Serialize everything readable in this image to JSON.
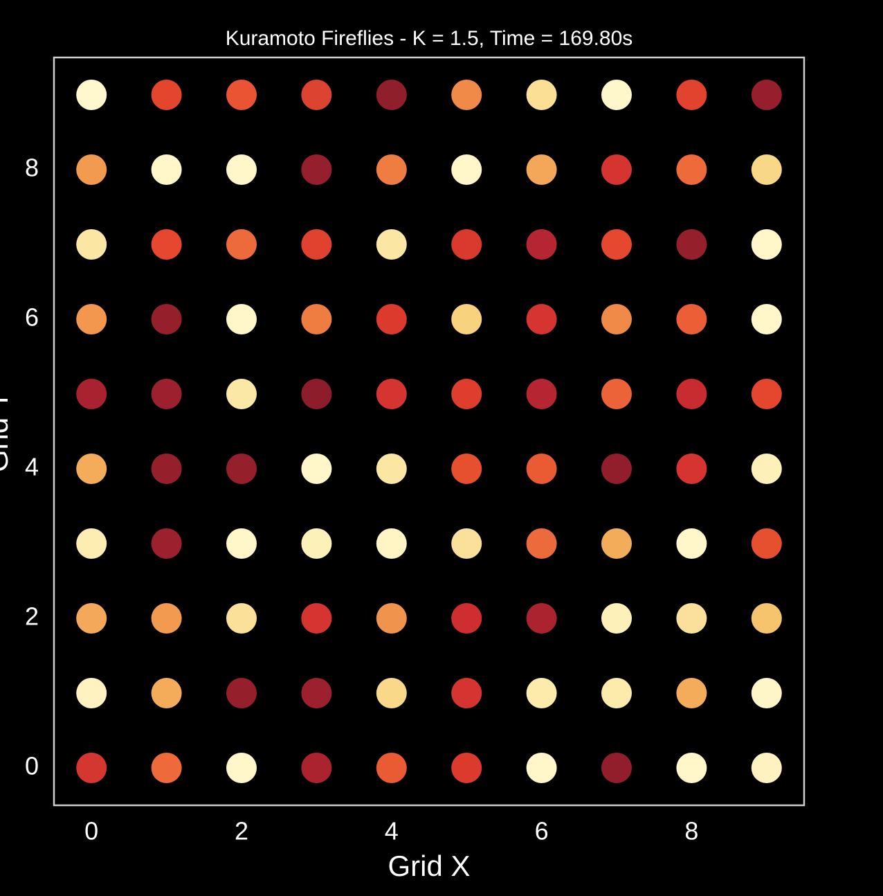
{
  "chart_data": {
    "type": "scatter",
    "title": "Kuramoto Fireflies - K = 1.5, Time = 169.80s",
    "xlabel": "Grid X",
    "ylabel": "Grid Y",
    "xlim": [
      -0.5,
      9.5
    ],
    "ylim": [
      -0.5,
      9.5
    ],
    "xticks": [
      0,
      2,
      4,
      6,
      8
    ],
    "yticks": [
      0,
      2,
      4,
      6,
      8
    ],
    "grid": false,
    "x": [
      0,
      1,
      2,
      3,
      4,
      5,
      6,
      7,
      8,
      9,
      0,
      1,
      2,
      3,
      4,
      5,
      6,
      7,
      8,
      9,
      0,
      1,
      2,
      3,
      4,
      5,
      6,
      7,
      8,
      9,
      0,
      1,
      2,
      3,
      4,
      5,
      6,
      7,
      8,
      9,
      0,
      1,
      2,
      3,
      4,
      5,
      6,
      7,
      8,
      9,
      0,
      1,
      2,
      3,
      4,
      5,
      6,
      7,
      8,
      9,
      0,
      1,
      2,
      3,
      4,
      5,
      6,
      7,
      8,
      9,
      0,
      1,
      2,
      3,
      4,
      5,
      6,
      7,
      8,
      9,
      0,
      1,
      2,
      3,
      4,
      5,
      6,
      7,
      8,
      9,
      0,
      1,
      2,
      3,
      4,
      5,
      6,
      7,
      8,
      9
    ],
    "y": [
      9,
      9,
      9,
      9,
      9,
      9,
      9,
      9,
      9,
      9,
      8,
      8,
      8,
      8,
      8,
      8,
      8,
      8,
      8,
      8,
      7,
      7,
      7,
      7,
      7,
      7,
      7,
      7,
      7,
      7,
      6,
      6,
      6,
      6,
      6,
      6,
      6,
      6,
      6,
      6,
      5,
      5,
      5,
      5,
      5,
      5,
      5,
      5,
      5,
      5,
      4,
      4,
      4,
      4,
      4,
      4,
      4,
      4,
      4,
      4,
      3,
      3,
      3,
      3,
      3,
      3,
      3,
      3,
      3,
      3,
      2,
      2,
      2,
      2,
      2,
      2,
      2,
      2,
      2,
      2,
      1,
      1,
      1,
      1,
      1,
      1,
      1,
      1,
      1,
      1,
      0,
      0,
      0,
      0,
      0,
      0,
      0,
      0,
      0,
      0
    ],
    "colors": [
      "#fff8cf",
      "#e4452d",
      "#ea5433",
      "#dc4330",
      "#8f1f2b",
      "#ef8a48",
      "#fbdf94",
      "#fef7cc",
      "#e2432e",
      "#971e2c",
      "#f29a50",
      "#fff6c9",
      "#fff6c9",
      "#951f2c",
      "#ef7c41",
      "#fff6c9",
      "#f4a659",
      "#d63430",
      "#ee6a3b",
      "#f8d887",
      "#fbe6a4",
      "#e6472e",
      "#ed6b3b",
      "#e0422f",
      "#fbe6a4",
      "#d93a2d",
      "#b52532",
      "#e6482f",
      "#961f2c",
      "#fff6c9",
      "#f3974f",
      "#961f2c",
      "#fff6c9",
      "#ef7c41",
      "#db3a2d",
      "#f9d27e",
      "#d63430",
      "#f08a48",
      "#ec5e36",
      "#fff6c9",
      "#a8222f",
      "#9c202e",
      "#fbe7a6",
      "#8e1d2b",
      "#d63430",
      "#df3e2e",
      "#b52532",
      "#ec6339",
      "#c82b30",
      "#e4472d",
      "#f4ab5a",
      "#961f2c",
      "#961f2c",
      "#fff6c9",
      "#fbe6a4",
      "#e6502f",
      "#ea5a33",
      "#931e2b",
      "#d63430",
      "#fdf0b8",
      "#fdedb3",
      "#9c202e",
      "#fff6c9",
      "#fdf1ba",
      "#fff4c4",
      "#fae09a",
      "#ec6a3b",
      "#f3ac5a",
      "#fff6c9",
      "#e6502f",
      "#f4a85a",
      "#f29a50",
      "#fbe09a",
      "#d63430",
      "#f0934c",
      "#ce2e2f",
      "#ac2330",
      "#fdf0b8",
      "#fae09a",
      "#f6c46c",
      "#fef3c0",
      "#f4ac5a",
      "#961f2c",
      "#9c202e",
      "#f9d88a",
      "#d63430",
      "#fcebaa",
      "#fcebaa",
      "#f4ac5a",
      "#fef6c8",
      "#d43630",
      "#ee6a3b",
      "#fff6c9",
      "#ac2330",
      "#ea5a33",
      "#db3a2d",
      "#fff6c9",
      "#931e2b",
      "#fff6c9",
      "#fef3c0"
    ]
  }
}
